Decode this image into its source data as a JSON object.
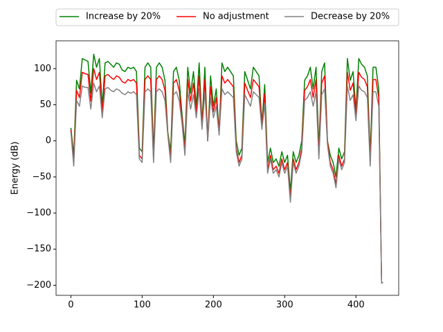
{
  "chart_data": {
    "type": "line",
    "ylabel": "Energy (dB)",
    "legend": "top",
    "grid": false,
    "xlim": [
      -20.8,
      460
    ],
    "ylim": [
      -214,
      138.6
    ],
    "xticks": [
      0,
      100,
      200,
      300,
      400
    ],
    "yticks": [
      {
        "value": -200,
        "label": "−200"
      },
      {
        "value": -150,
        "label": "−150"
      },
      {
        "value": -100,
        "label": "−100"
      },
      {
        "value": -50,
        "label": "−50"
      },
      0,
      50,
      100
    ],
    "x": [
      0,
      4,
      8,
      12,
      16,
      20,
      24,
      28,
      32,
      36,
      40,
      44,
      48,
      52,
      56,
      60,
      64,
      68,
      72,
      76,
      80,
      84,
      88,
      92,
      96,
      100,
      104,
      108,
      112,
      116,
      120,
      124,
      128,
      132,
      136,
      140,
      144,
      148,
      152,
      156,
      160,
      164,
      168,
      172,
      176,
      180,
      184,
      188,
      192,
      196,
      200,
      204,
      208,
      212,
      216,
      220,
      224,
      228,
      232,
      236,
      240,
      244,
      248,
      252,
      256,
      260,
      264,
      268,
      272,
      276,
      280,
      284,
      288,
      292,
      296,
      300,
      304,
      308,
      312,
      316,
      320,
      324,
      328,
      332,
      336,
      340,
      344,
      348,
      352,
      356,
      360,
      364,
      368,
      372,
      376,
      380,
      384,
      388,
      392,
      396,
      400,
      404,
      408,
      412,
      416,
      420,
      424,
      428,
      432,
      436,
      438
    ],
    "series": [
      {
        "name": "Increase by 20%",
        "color": "#008000",
        "values": [
          18,
          -20,
          84,
          72,
          114,
          112,
          110,
          66,
          120,
          102,
          114,
          48,
          108,
          110,
          106,
          102,
          108,
          106,
          98,
          96,
          102,
          100,
          102,
          96,
          -10,
          -15,
          102,
          108,
          102,
          -15,
          102,
          108,
          102,
          84,
          12,
          -15,
          96,
          102,
          84,
          36,
          -5,
          102,
          66,
          96,
          48,
          108,
          24,
          102,
          0,
          90,
          48,
          72,
          12,
          108,
          96,
          102,
          96,
          90,
          0,
          -20,
          -10,
          96,
          84,
          72,
          102,
          96,
          90,
          24,
          78,
          -30,
          -10,
          -30,
          -25,
          -35,
          -15,
          -30,
          -20,
          -70,
          -15,
          -30,
          -20,
          0,
          84,
          90,
          102,
          72,
          102,
          -10,
          96,
          108,
          0,
          -20,
          -30,
          -50,
          -10,
          -25,
          -15,
          114,
          84,
          96,
          42,
          114,
          106,
          102,
          90,
          -20,
          102,
          102,
          72,
          -197,
          -196
        ]
      },
      {
        "name": "No adjustment",
        "color": "#ff0000",
        "values": [
          15,
          -30,
          70,
          60,
          95,
          93,
          92,
          55,
          100,
          85,
          95,
          40,
          90,
          92,
          88,
          85,
          90,
          88,
          82,
          80,
          85,
          83,
          85,
          80,
          -20,
          -25,
          85,
          90,
          85,
          -25,
          85,
          90,
          85,
          70,
          10,
          -25,
          80,
          85,
          70,
          30,
          -15,
          85,
          55,
          80,
          40,
          90,
          20,
          85,
          0,
          75,
          40,
          60,
          10,
          90,
          80,
          85,
          80,
          75,
          -10,
          -30,
          -20,
          80,
          70,
          60,
          85,
          80,
          75,
          20,
          65,
          -40,
          -20,
          -40,
          -35,
          -45,
          -25,
          -40,
          -30,
          -80,
          -25,
          -40,
          -30,
          -10,
          70,
          75,
          85,
          60,
          85,
          -20,
          80,
          90,
          0,
          -30,
          -40,
          -60,
          -20,
          -35,
          -25,
          95,
          70,
          80,
          35,
          95,
          88,
          85,
          75,
          -30,
          85,
          85,
          60,
          -197,
          -196
        ]
      },
      {
        "name": "Decrease by 20%",
        "color": "#808080",
        "values": [
          12,
          -35,
          56,
          48,
          76,
          74,
          74,
          44,
          80,
          68,
          76,
          32,
          72,
          74,
          70,
          68,
          72,
          70,
          66,
          64,
          68,
          66,
          68,
          64,
          -25,
          -30,
          68,
          72,
          68,
          -30,
          68,
          72,
          68,
          56,
          8,
          -30,
          64,
          68,
          56,
          24,
          -20,
          68,
          44,
          64,
          32,
          72,
          16,
          68,
          0,
          60,
          32,
          48,
          8,
          72,
          64,
          68,
          64,
          60,
          -15,
          -35,
          -25,
          64,
          56,
          48,
          68,
          64,
          60,
          16,
          52,
          -45,
          -25,
          -45,
          -40,
          -50,
          -30,
          -45,
          -35,
          -85,
          -30,
          -45,
          -35,
          -15,
          56,
          60,
          68,
          48,
          68,
          -25,
          64,
          72,
          -5,
          -35,
          -45,
          -65,
          -25,
          -40,
          -30,
          76,
          56,
          64,
          28,
          76,
          70,
          68,
          60,
          -35,
          68,
          68,
          48,
          -197,
          -196
        ]
      }
    ]
  }
}
